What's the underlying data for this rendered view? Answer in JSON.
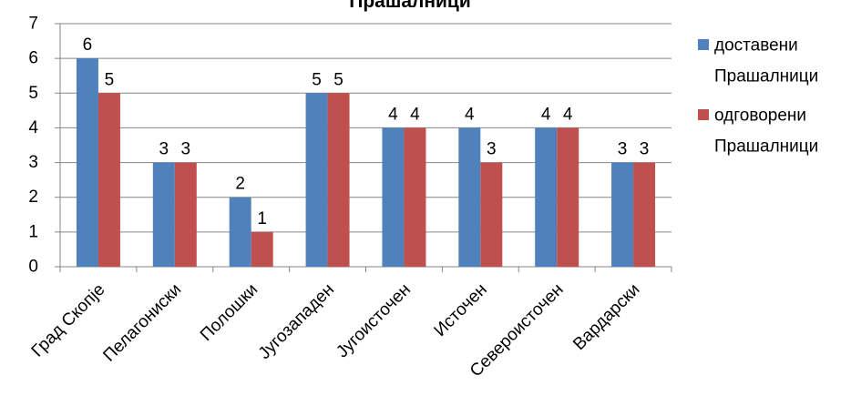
{
  "chart_data": {
    "type": "bar",
    "title": "Прашалници",
    "categories": [
      "Град Скопје",
      "Пелагониски",
      "Полошки",
      "Југозападен",
      "Југоисточен",
      "Источен",
      "Североисточен",
      "Вардарски"
    ],
    "series": [
      {
        "name": "доставени Прашалници",
        "legend_lines": [
          "доставени",
          "Прашалници"
        ],
        "values": [
          6,
          3,
          2,
          5,
          4,
          4,
          4,
          3
        ],
        "color": "#4F81BD"
      },
      {
        "name": "одговорени Прашалници",
        "legend_lines": [
          "одговорени",
          "Прашалници"
        ],
        "values": [
          5,
          3,
          1,
          5,
          4,
          3,
          4,
          3
        ],
        "color": "#C0504D"
      }
    ],
    "ylim": [
      0,
      7
    ],
    "yticks": [
      0,
      1,
      2,
      3,
      4,
      5,
      6,
      7
    ],
    "grid": true,
    "legend": "right",
    "data_labels": true
  }
}
